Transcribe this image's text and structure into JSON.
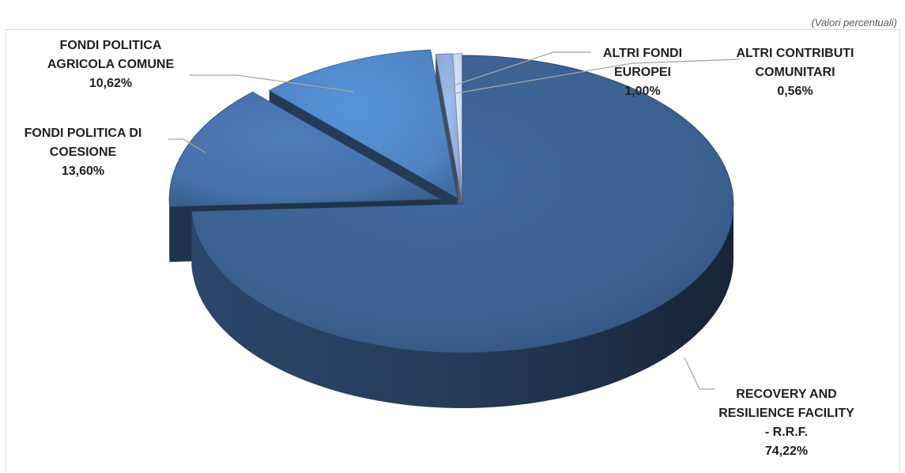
{
  "unit_note": "(Valori percentuali)",
  "chart_data": {
    "type": "pie",
    "categories": [
      "RECOVERY AND RESILIENCE FACILITY - R.R.F.",
      "FONDI POLITICA DI COESIONE",
      "FONDI POLITICA AGRICOLA COMUNE",
      "ALTRI FONDI EUROPEI",
      "ALTRI CONTRIBUTI COMUNITARI"
    ],
    "values": [
      74.22,
      13.6,
      10.62,
      1.0,
      0.56
    ],
    "labels": [
      {
        "lines": [
          "RECOVERY AND",
          "RESILIENCE FACILITY",
          "- R.R.F."
        ],
        "value_text": "74,22%"
      },
      {
        "lines": [
          "FONDI POLITICA DI",
          "COESIONE"
        ],
        "value_text": "13,60%"
      },
      {
        "lines": [
          "FONDI POLITICA",
          "AGRICOLA COMUNE"
        ],
        "value_text": "10,62%"
      },
      {
        "lines": [
          "ALTRI FONDI",
          "EUROPEI"
        ],
        "value_text": "1,00%"
      },
      {
        "lines": [
          "ALTRI CONTRIBUTI",
          "COMUNITARI"
        ],
        "value_text": "0,56%"
      }
    ],
    "colors": [
      "#3b5f8f",
      "#4670a8",
      "#4f84c4",
      "#8ea9d6",
      "#c5d4ea"
    ],
    "legend": "none",
    "style": "3d-exploded"
  }
}
